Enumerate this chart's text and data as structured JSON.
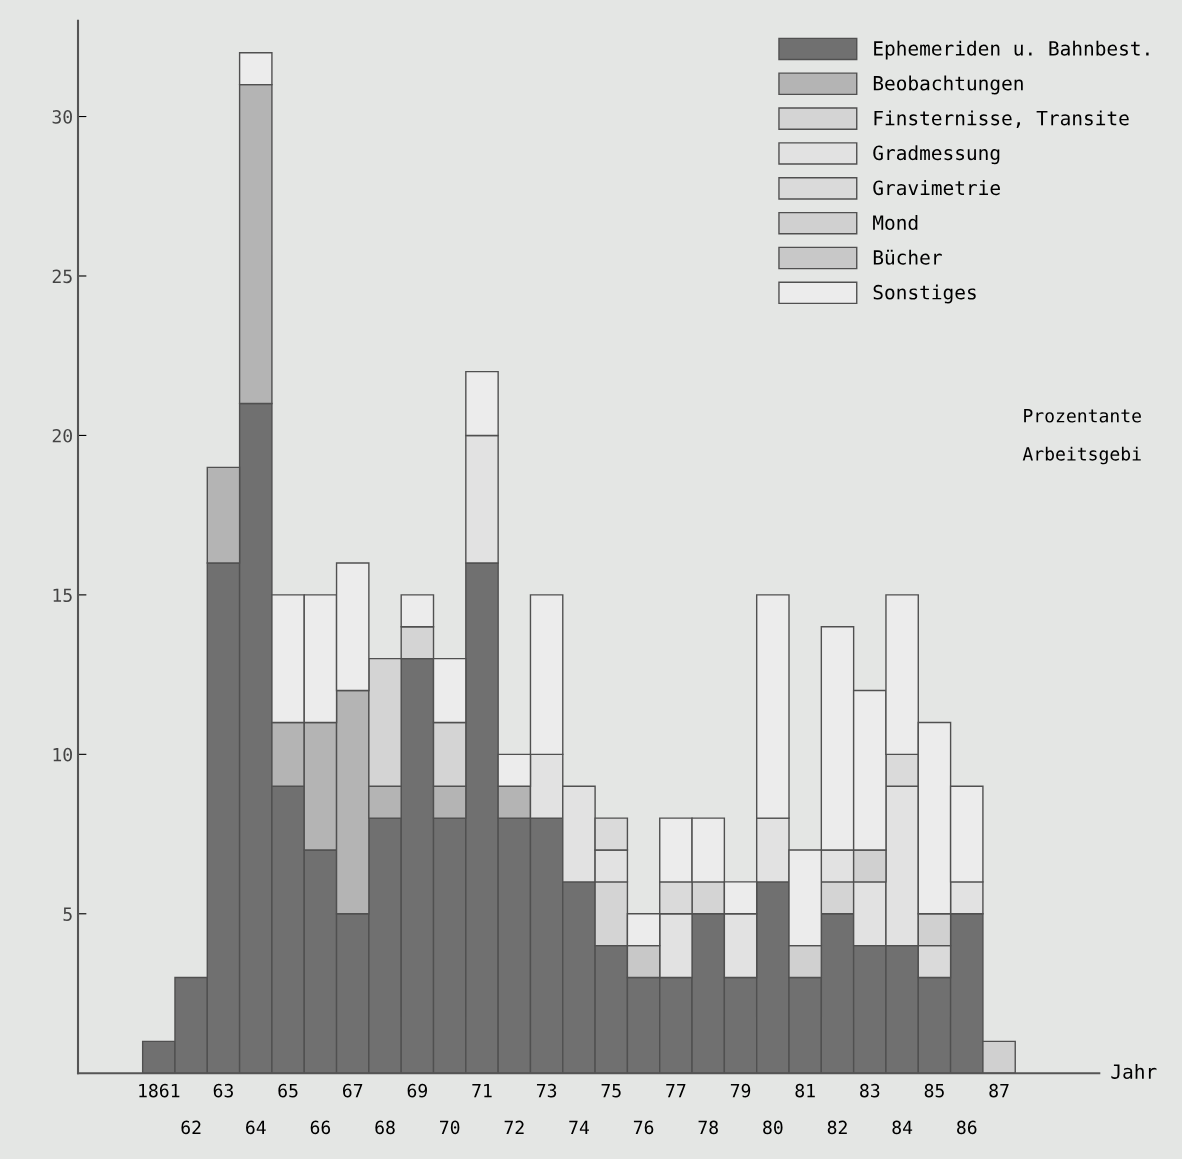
{
  "chart_data": {
    "type": "bar",
    "stacked": true,
    "xlabel": "Jahr",
    "categories": [
      "1861",
      "62",
      "63",
      "64",
      "65",
      "66",
      "67",
      "68",
      "69",
      "70",
      "71",
      "72",
      "73",
      "74",
      "75",
      "76",
      "77",
      "78",
      "79",
      "80",
      "81",
      "82",
      "83",
      "84",
      "85",
      "86",
      "87"
    ],
    "series": [
      {
        "name": "Ephemeriden u. Bahnbest.",
        "color": "#707070",
        "values": [
          1,
          3,
          16,
          21,
          9,
          7,
          5,
          8,
          13,
          8,
          16,
          8,
          8,
          6,
          4,
          3,
          3,
          5,
          3,
          6,
          3,
          5,
          4,
          4,
          3,
          5,
          null
        ]
      },
      {
        "name": "Beobachtungen",
        "color": "#b4b4b4",
        "values": [
          null,
          null,
          3,
          10,
          2,
          4,
          7,
          1,
          null,
          1,
          null,
          1,
          null,
          null,
          null,
          null,
          null,
          null,
          null,
          null,
          null,
          null,
          null,
          null,
          null,
          null,
          null
        ]
      },
      {
        "name": "Finsternisse, Transite",
        "color": "#d4d4d4",
        "values": [
          null,
          null,
          null,
          null,
          null,
          null,
          null,
          4,
          1,
          2,
          null,
          null,
          null,
          null,
          2,
          null,
          null,
          1,
          null,
          null,
          null,
          1,
          null,
          null,
          null,
          null,
          null
        ]
      },
      {
        "name": "Gradmessung",
        "color": "#e2e2e2",
        "values": [
          null,
          null,
          null,
          null,
          null,
          null,
          null,
          null,
          null,
          null,
          4,
          null,
          2,
          3,
          1,
          null,
          2,
          null,
          2,
          2,
          null,
          1,
          2,
          5,
          null,
          1,
          null
        ]
      },
      {
        "name": "Gravimetrie",
        "color": "#dadada",
        "values": [
          null,
          null,
          null,
          null,
          null,
          null,
          null,
          null,
          null,
          null,
          null,
          null,
          null,
          null,
          1,
          null,
          1,
          null,
          null,
          null,
          null,
          null,
          null,
          1,
          1,
          null,
          null
        ]
      },
      {
        "name": "Mond",
        "color": "#d0d0d0",
        "values": [
          null,
          null,
          null,
          null,
          null,
          null,
          null,
          null,
          null,
          null,
          null,
          null,
          null,
          null,
          null,
          null,
          null,
          null,
          null,
          null,
          1,
          null,
          1,
          null,
          1,
          null,
          1
        ]
      },
      {
        "name": "Bücher",
        "color": "#c8c8c8",
        "values": [
          null,
          null,
          null,
          null,
          null,
          null,
          null,
          null,
          null,
          null,
          null,
          null,
          null,
          null,
          null,
          1,
          null,
          null,
          null,
          null,
          null,
          null,
          null,
          null,
          null,
          null,
          null
        ]
      },
      {
        "name": "Sonstiges",
        "color": "#ececec",
        "values": [
          null,
          null,
          null,
          1,
          4,
          4,
          4,
          null,
          1,
          2,
          2,
          1,
          5,
          null,
          null,
          1,
          2,
          2,
          1,
          7,
          3,
          7,
          5,
          5,
          6,
          3,
          null
        ]
      }
    ],
    "ylim": [
      0,
      33
    ],
    "yticks": [
      5,
      10,
      15,
      20,
      25,
      30
    ],
    "legend": "top right",
    "grid": false,
    "annotations": [
      "Prozentante",
      "Arbeitsgebi"
    ]
  }
}
